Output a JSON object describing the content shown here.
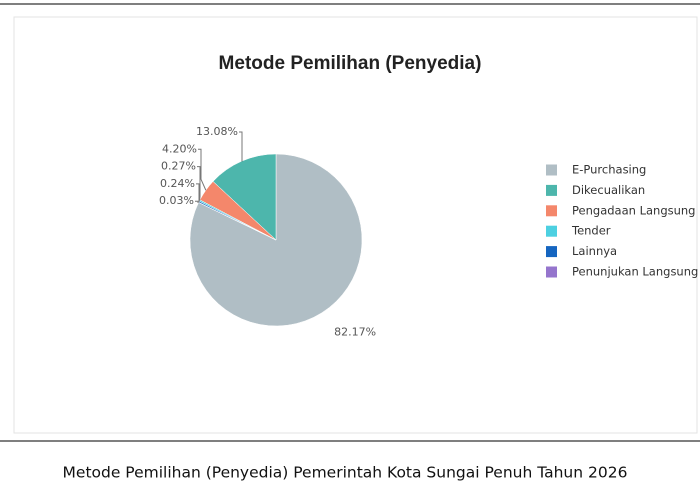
{
  "chart_data": {
    "type": "pie",
    "title": "Metode Pemilihan (Penyedia)",
    "categories": [
      "E-Purchasing",
      "Dikecualikan",
      "Pengadaan Langsung",
      "Tender",
      "Lainnya",
      "Penunjukan Langsung"
    ],
    "values": [
      82.17,
      13.08,
      4.2,
      0.27,
      0.24,
      0.03
    ],
    "value_labels": [
      "82.17%",
      "13.08%",
      "4.20%",
      "0.27%",
      "0.24%",
      "0.03%"
    ],
    "colors": [
      "#b0bec5",
      "#4db6ac",
      "#f4876b",
      "#4dd0e1",
      "#1565c0",
      "#9575cd"
    ],
    "legend": "right",
    "caption": "Metode Pemilihan (Penyedia) Pemerintah Kota Sungai Penuh Tahun 2026"
  }
}
